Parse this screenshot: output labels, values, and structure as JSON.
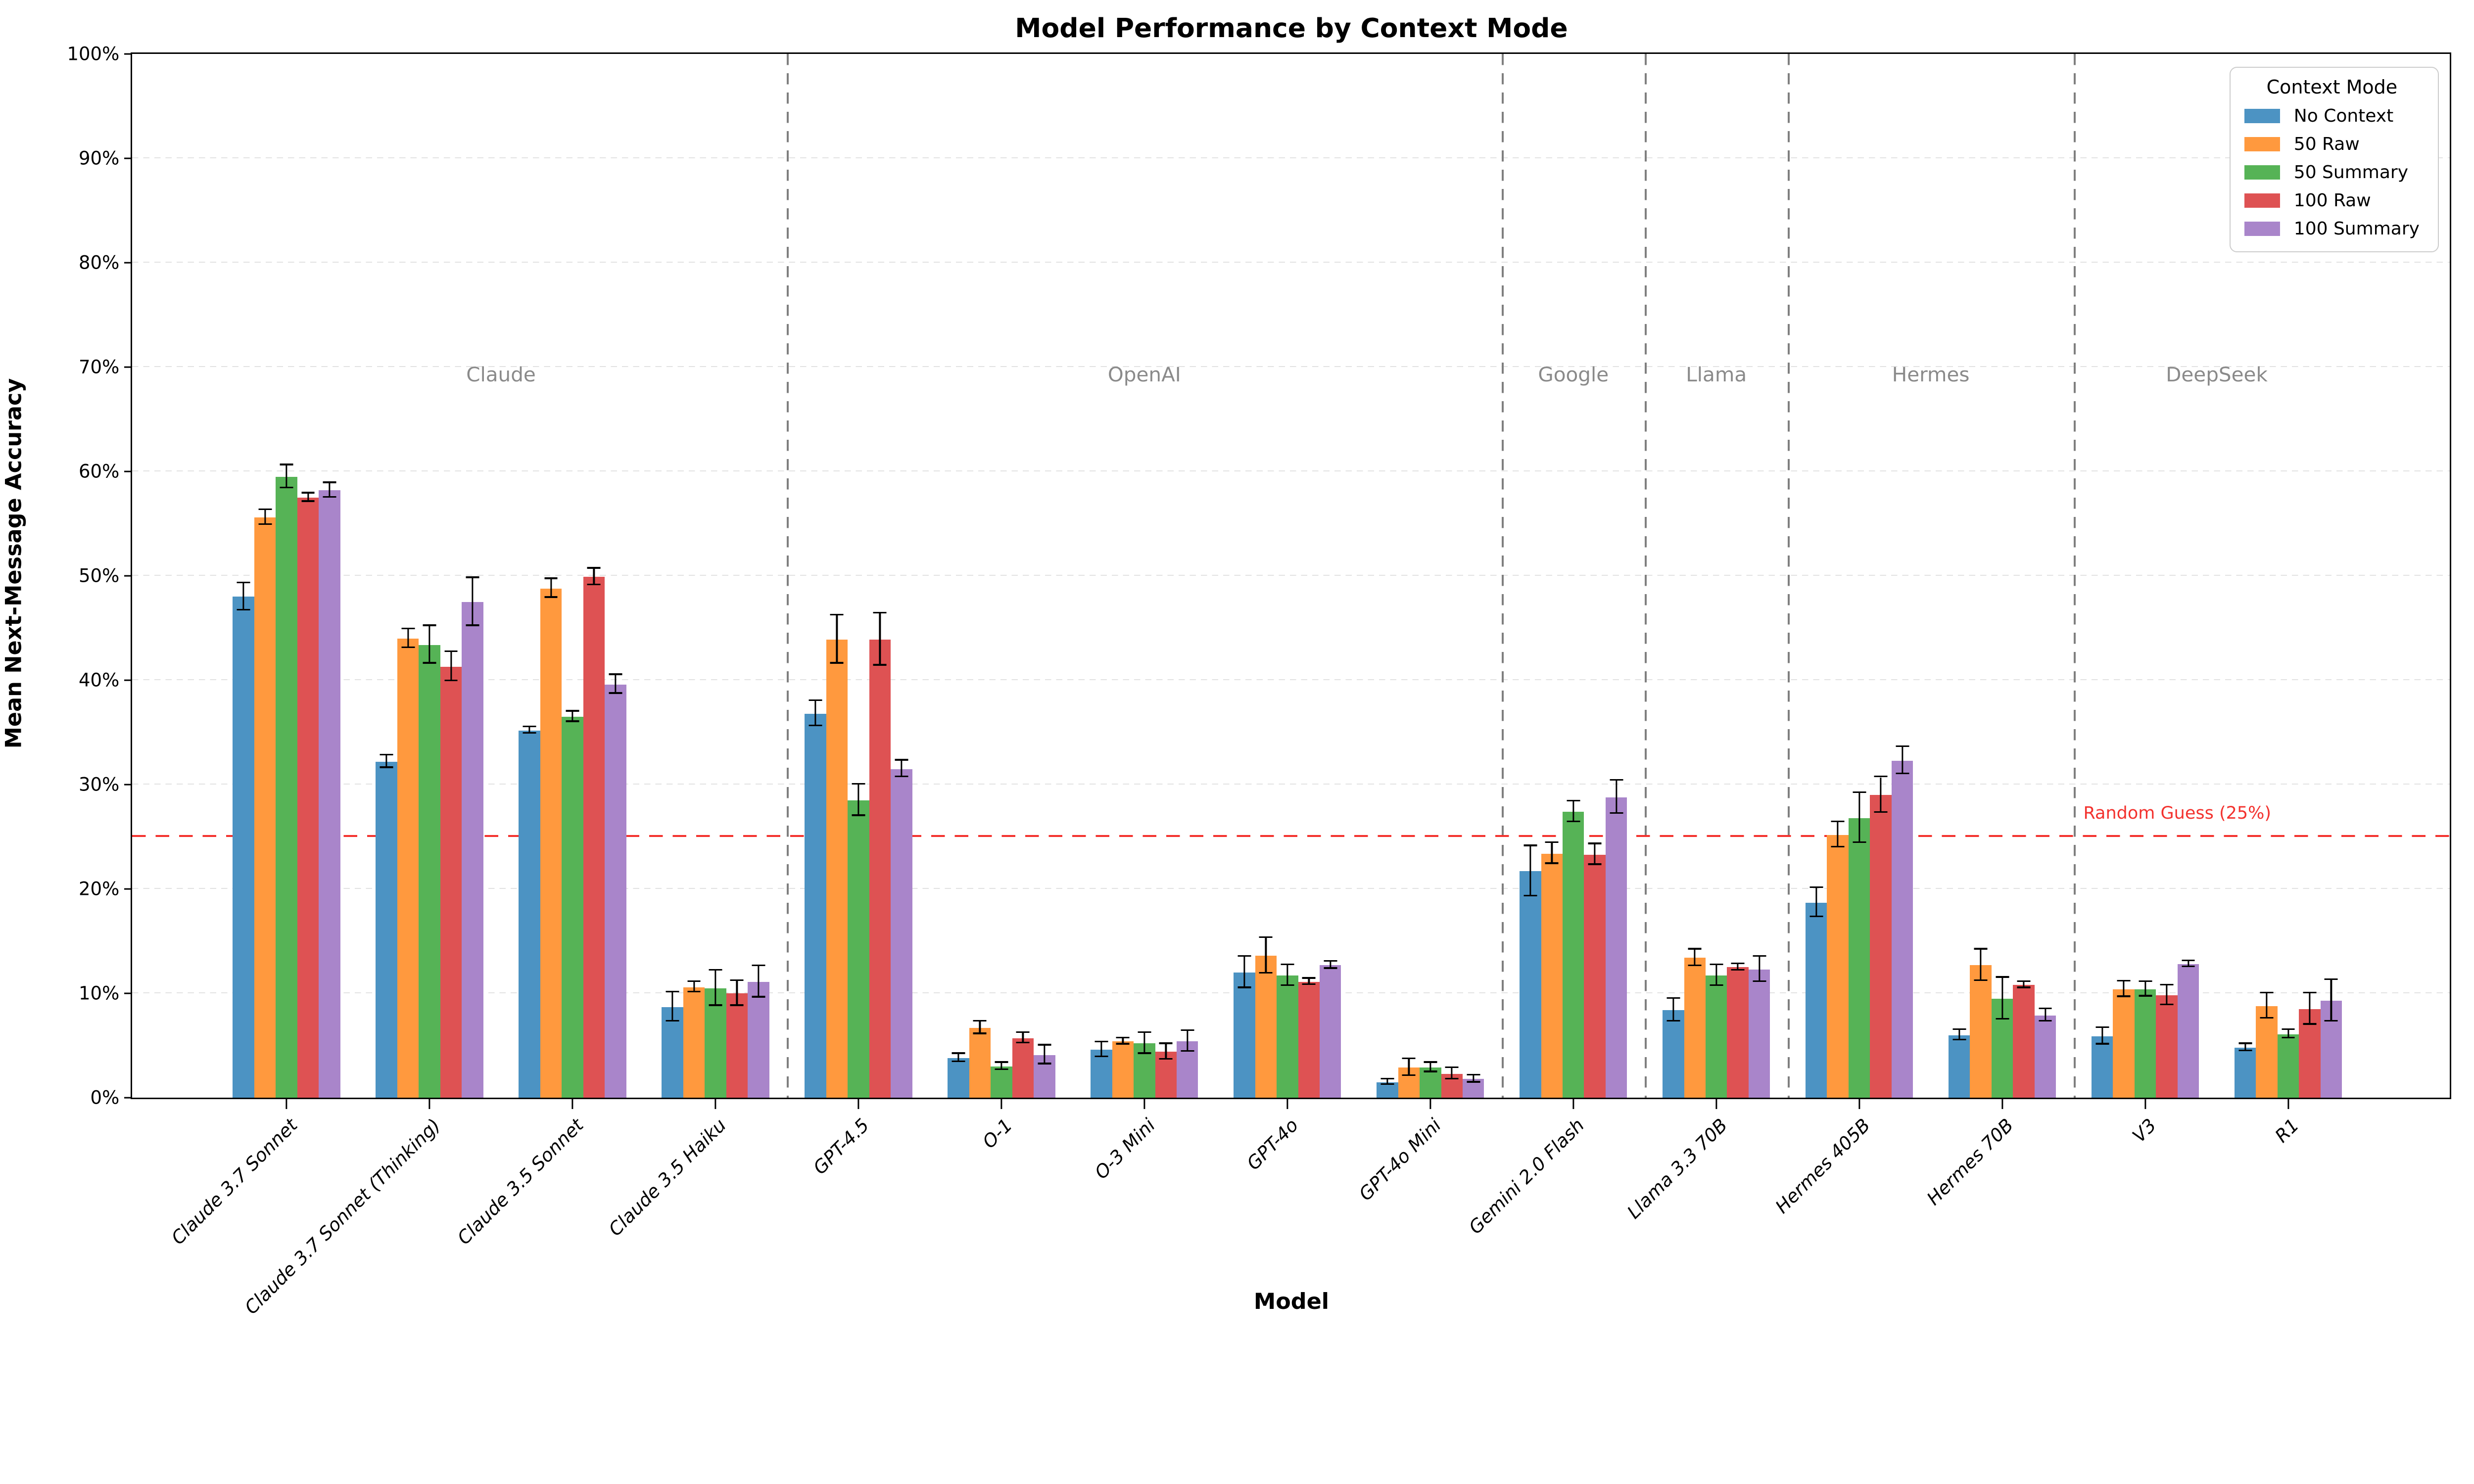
{
  "title": "Model Performance by Context Mode",
  "xlabel": "Model",
  "ylabel": "Mean Next-Message Accuracy",
  "legend": {
    "title": "Context Mode"
  },
  "reference_line": {
    "label": "Random Guess (25%)",
    "value": 25,
    "color": "#f3322e"
  },
  "chart_data": {
    "type": "bar",
    "title": "Model Performance by Context Mode",
    "xlabel": "Model",
    "ylabel": "Mean Next-Message Accuracy",
    "ylim": [
      0,
      100
    ],
    "ytick_step": 10,
    "ytick_format": "percent",
    "grid": "horizontal-dashed",
    "legend_position": "upper-right",
    "categories": [
      "Claude 3.7 Sonnet",
      "Claude 3.7 Sonnet (Thinking)",
      "Claude 3.5 Sonnet",
      "Claude 3.5 Haiku",
      "GPT-4.5",
      "O-1",
      "O-3 Mini",
      "GPT-4o",
      "GPT-4o Mini",
      "Gemini 2.0 Flash",
      "Llama 3.3 70B",
      "Hermes 405B",
      "Hermes 70B",
      "V3",
      "R1"
    ],
    "vendor_groups": [
      {
        "label": "Claude",
        "from": 0,
        "to": 3
      },
      {
        "label": "OpenAI",
        "from": 4,
        "to": 8
      },
      {
        "label": "Google",
        "from": 9,
        "to": 9
      },
      {
        "label": "Llama",
        "from": 10,
        "to": 10
      },
      {
        "label": "Hermes",
        "from": 11,
        "to": 12
      },
      {
        "label": "DeepSeek",
        "from": 13,
        "to": 14
      }
    ],
    "vendor_label_y": 69.3,
    "series": [
      {
        "name": "No Context",
        "color": "#4C93C3",
        "values": [
          48.0,
          32.2,
          35.2,
          8.7,
          36.8,
          3.8,
          4.6,
          12.0,
          1.5,
          21.7,
          8.4,
          18.7,
          6.0,
          5.9,
          4.8
        ],
        "errors": [
          1.3,
          0.6,
          0.3,
          1.4,
          1.2,
          0.4,
          0.7,
          1.5,
          0.25,
          2.4,
          1.1,
          1.4,
          0.5,
          0.8,
          0.35
        ]
      },
      {
        "name": "50 Raw",
        "color": "#FF993E",
        "values": [
          55.6,
          44.0,
          48.8,
          10.6,
          43.9,
          6.7,
          5.4,
          13.6,
          2.9,
          23.4,
          13.4,
          25.2,
          12.7,
          10.4,
          8.8
        ],
        "errors": [
          0.7,
          0.9,
          0.9,
          0.5,
          2.3,
          0.6,
          0.3,
          1.7,
          0.8,
          1.0,
          0.8,
          1.2,
          1.5,
          0.75,
          1.2
        ]
      },
      {
        "name": "50 Summary",
        "color": "#56B356",
        "values": [
          59.5,
          43.4,
          36.5,
          10.5,
          28.5,
          3.0,
          5.2,
          11.7,
          2.9,
          27.4,
          11.7,
          26.8,
          9.5,
          10.4,
          6.1
        ],
        "errors": [
          1.1,
          1.8,
          0.5,
          1.7,
          1.5,
          0.35,
          1.0,
          1.0,
          0.45,
          1.0,
          1.0,
          2.4,
          2.0,
          0.7,
          0.4
        ]
      },
      {
        "name": "100 Raw",
        "color": "#DE5253",
        "values": [
          57.5,
          41.3,
          49.9,
          10.0,
          43.9,
          5.7,
          4.4,
          11.1,
          2.3,
          23.3,
          12.5,
          29.0,
          10.8,
          9.8,
          8.5
        ],
        "errors": [
          0.4,
          1.4,
          0.8,
          1.2,
          2.5,
          0.5,
          0.75,
          0.3,
          0.55,
          1.0,
          0.3,
          1.7,
          0.3,
          0.95,
          1.5
        ]
      },
      {
        "name": "100 Summary",
        "color": "#A985CA",
        "values": [
          58.2,
          47.5,
          39.6,
          11.1,
          31.5,
          4.1,
          5.4,
          12.7,
          1.8,
          28.8,
          12.3,
          32.3,
          7.9,
          12.8,
          9.3
        ],
        "errors": [
          0.7,
          2.3,
          0.9,
          1.5,
          0.8,
          0.9,
          1.0,
          0.35,
          0.35,
          1.6,
          1.2,
          1.3,
          0.6,
          0.3,
          2.0
        ]
      }
    ]
  }
}
